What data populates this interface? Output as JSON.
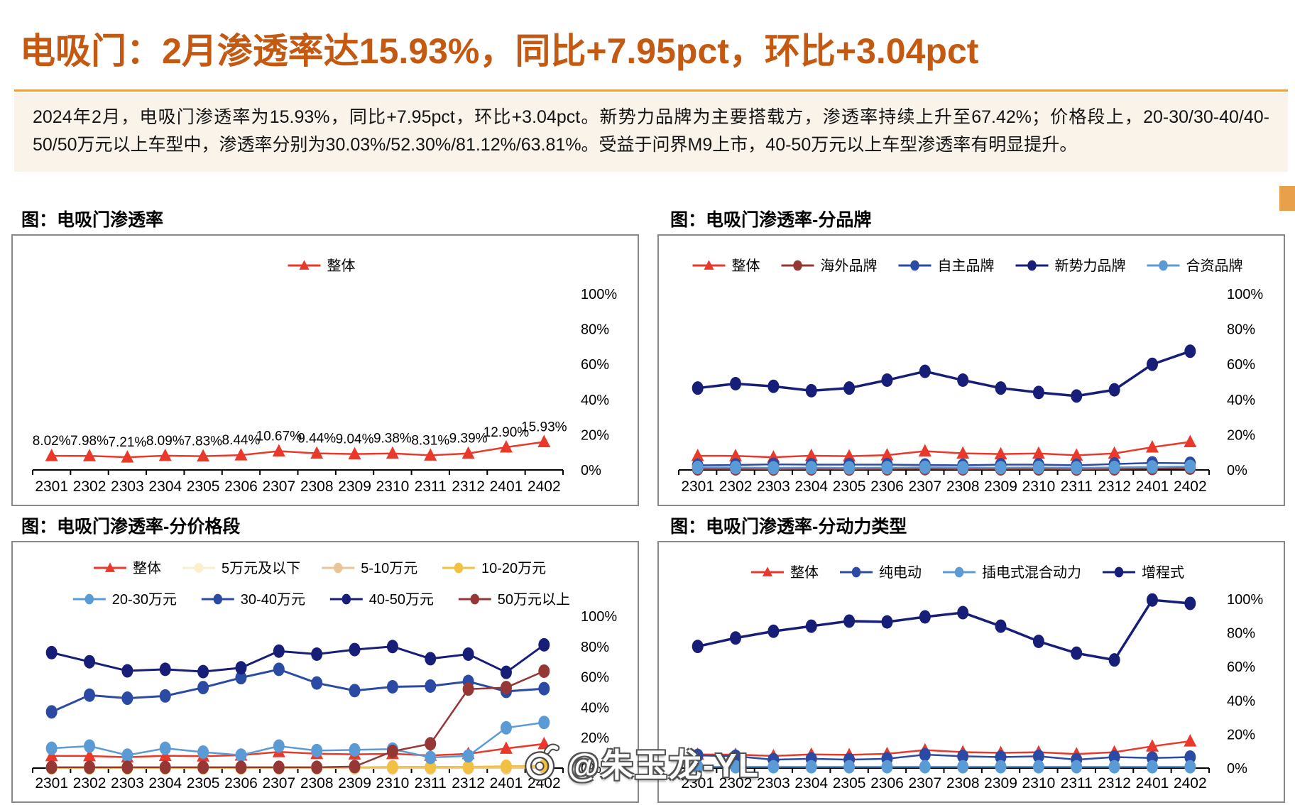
{
  "page": {
    "title": "电吸门：2月渗透率达15.93%，同比+7.95pct，环比+3.04pct",
    "summary": "2024年2月，电吸门渗透率为15.93%，同比+7.95pct，环比+3.04pct。新势力品牌为主要搭载方，渗透率持续上升至67.42%；价格段上，20-30/30-40/40-50/50万元以上车型中，渗透率分别为30.03%/52.30%/81.12%/63.81%。受益于问界M9上市，40-50万元以上车型渗透率有明显提升。",
    "watermark": "@朱玉龙-YL"
  },
  "colors": {
    "title_orange": "#C45911",
    "rule_orange": "#E9A04B",
    "summary_bg": "#FAF3EA",
    "overall_red": "#E8392B",
    "navy": "#171E77",
    "medium_blue": "#2B4AA3",
    "light_blue": "#5B9BD5",
    "maroon": "#953735",
    "gold": "#F2C142",
    "tan": "#E9C699",
    "pale_cream": "#FAF0CE"
  },
  "chart_data": [
    {
      "type": "line",
      "title": "图：电吸门渗透率",
      "categories": [
        "2301",
        "2302",
        "2303",
        "2304",
        "2305",
        "2306",
        "2307",
        "2308",
        "2309",
        "2310",
        "2311",
        "2312",
        "2401",
        "2402"
      ],
      "ylim": [
        0,
        100
      ],
      "grid": false,
      "legend_position": "top",
      "yticks": [
        {
          "label": "100%",
          "v": 100
        },
        {
          "label": "80%",
          "v": 80
        },
        {
          "label": "60%",
          "v": 60
        },
        {
          "label": "40%",
          "v": 40
        },
        {
          "label": "20%",
          "v": 20
        },
        {
          "label": "0%",
          "v": 0
        }
      ],
      "series": [
        {
          "name": "整体",
          "key": "overall",
          "color": "#E8392B",
          "marker": "triangle",
          "width": 2.5,
          "point_labels": true,
          "values": [
            8.02,
            7.98,
            7.21,
            8.09,
            7.83,
            8.44,
            10.67,
            9.44,
            9.04,
            9.38,
            8.31,
            9.39,
            12.9,
            15.93
          ]
        }
      ]
    },
    {
      "type": "line",
      "title": "图：电吸门渗透率-分品牌",
      "categories": [
        "2301",
        "2302",
        "2303",
        "2304",
        "2305",
        "2306",
        "2307",
        "2308",
        "2309",
        "2310",
        "2311",
        "2312",
        "2401",
        "2402"
      ],
      "ylim": [
        0,
        100
      ],
      "grid": false,
      "legend_position": "top",
      "yticks": [
        {
          "label": "100%",
          "v": 100
        },
        {
          "label": "80%",
          "v": 80
        },
        {
          "label": "60%",
          "v": 60
        },
        {
          "label": "40%",
          "v": 40
        },
        {
          "label": "20%",
          "v": 20
        },
        {
          "label": "0%",
          "v": 0
        }
      ],
      "series": [
        {
          "name": "整体",
          "key": "overall",
          "color": "#E8392B",
          "marker": "triangle",
          "width": 2.5,
          "values": [
            8.02,
            7.98,
            7.21,
            8.09,
            7.83,
            8.44,
            10.67,
            9.44,
            9.04,
            9.38,
            8.31,
            9.39,
            12.9,
            15.93
          ]
        },
        {
          "name": "海外品牌",
          "key": "overseas-brand",
          "color": "#953735",
          "marker": "circle",
          "width": 2.5,
          "values": [
            0.6,
            0.6,
            0.5,
            0.6,
            0.5,
            0.6,
            0.7,
            0.6,
            0.6,
            0.6,
            0.5,
            0.6,
            0.8,
            1.0
          ]
        },
        {
          "name": "自主品牌",
          "key": "domestic-brand",
          "color": "#2B4AA3",
          "marker": "circle",
          "width": 2.5,
          "values": [
            2.6,
            2.8,
            3.2,
            3.0,
            3.0,
            3.0,
            2.8,
            2.6,
            3.0,
            3.0,
            2.6,
            3.4,
            4.0,
            3.8
          ]
        },
        {
          "name": "新势力品牌",
          "key": "new-force-brand",
          "color": "#171E77",
          "marker": "circle",
          "width": 3.5,
          "values": [
            46.5,
            49.0,
            47.5,
            45.0,
            46.5,
            51.0,
            56.0,
            51.0,
            46.5,
            44.0,
            42.0,
            45.5,
            60.0,
            67.42
          ]
        },
        {
          "name": "合资品牌",
          "key": "jv-brand",
          "color": "#5B9BD5",
          "marker": "circle",
          "width": 2.5,
          "values": [
            1.4,
            1.4,
            1.2,
            1.3,
            1.2,
            1.3,
            1.5,
            1.3,
            1.3,
            1.4,
            1.2,
            1.4,
            1.7,
            2.0
          ]
        }
      ]
    },
    {
      "type": "line",
      "title": "图：电吸门渗透率-分价格段",
      "categories": [
        "2301",
        "2302",
        "2303",
        "2304",
        "2305",
        "2306",
        "2307",
        "2308",
        "2309",
        "2310",
        "2311",
        "2312",
        "2401",
        "2402"
      ],
      "ylim": [
        0,
        100
      ],
      "grid": false,
      "legend_position": "top-two-rows",
      "yticks": [
        {
          "label": "100%",
          "v": 100
        },
        {
          "label": "80%",
          "v": 80
        },
        {
          "label": "60%",
          "v": 60
        },
        {
          "label": "40%",
          "v": 40
        },
        {
          "label": "20%",
          "v": 20
        },
        {
          "label": "0%",
          "v": 0
        }
      ],
      "series": [
        {
          "name": "整体",
          "key": "overall",
          "color": "#E8392B",
          "marker": "triangle",
          "width": 2.5,
          "values": [
            8.02,
            7.98,
            7.21,
            8.09,
            7.83,
            8.44,
            10.67,
            9.44,
            9.04,
            9.38,
            8.31,
            9.39,
            12.9,
            15.93
          ]
        },
        {
          "name": "5万元及以下",
          "key": "below-50k",
          "color": "#FAF0CE",
          "marker": "circle",
          "width": 2.5,
          "values": [
            0.1,
            0.1,
            0.1,
            0.1,
            0.1,
            0.1,
            0.1,
            0.1,
            0.1,
            0.1,
            0.1,
            0.1,
            0.1,
            0.1
          ]
        },
        {
          "name": "5-10万元",
          "key": "50k-100k",
          "color": "#E9C699",
          "marker": "circle",
          "width": 2.5,
          "values": [
            0.2,
            0.2,
            0.2,
            0.2,
            0.2,
            0.2,
            0.2,
            0.2,
            0.2,
            0.2,
            0.2,
            0.2,
            0.2,
            0.2
          ]
        },
        {
          "name": "10-20万元",
          "key": "100k-200k",
          "color": "#F2C142",
          "marker": "circle",
          "width": 2.5,
          "values": [
            0.3,
            0.3,
            0.3,
            0.3,
            0.3,
            0.3,
            0.4,
            0.4,
            0.5,
            0.8,
            0.8,
            0.8,
            1.2,
            1.5
          ]
        },
        {
          "name": "20-30万元",
          "key": "200k-300k",
          "color": "#5B9BD5",
          "marker": "circle",
          "width": 2.5,
          "values": [
            13.0,
            14.5,
            8.5,
            13.0,
            10.5,
            8.5,
            14.5,
            11.5,
            12.0,
            12.5,
            7.0,
            8.0,
            26.5,
            30.03
          ]
        },
        {
          "name": "30-40万元",
          "key": "300k-400k",
          "color": "#2B4AA3",
          "marker": "circle",
          "width": 3,
          "values": [
            37.0,
            48.0,
            46.0,
            47.5,
            53.0,
            59.5,
            65.0,
            56.0,
            51.0,
            53.5,
            54.0,
            57.0,
            50.5,
            52.3
          ]
        },
        {
          "name": "40-50万元",
          "key": "400k-500k",
          "color": "#171E77",
          "marker": "circle",
          "width": 3,
          "values": [
            76.0,
            70.0,
            64.0,
            65.0,
            63.5,
            66.0,
            77.0,
            75.0,
            78.0,
            80.0,
            72.0,
            75.0,
            63.0,
            81.12
          ]
        },
        {
          "name": "50万元以上",
          "key": "above-500k",
          "color": "#953735",
          "marker": "circle",
          "width": 2.5,
          "values": [
            0.5,
            0.5,
            0.5,
            0.5,
            0.5,
            0.5,
            0.5,
            0.5,
            1.0,
            11.0,
            16.0,
            52.0,
            53.0,
            63.81
          ]
        }
      ]
    },
    {
      "type": "line",
      "title": "图：电吸门渗透率-分动力类型",
      "categories": [
        "2301",
        "2302",
        "2303",
        "2304",
        "2305",
        "2306",
        "2307",
        "2308",
        "2309",
        "2310",
        "2311",
        "2312",
        "2401",
        "2402"
      ],
      "ylim": [
        0,
        100
      ],
      "grid": false,
      "legend_position": "top",
      "yticks": [
        {
          "label": "100%",
          "v": 100
        },
        {
          "label": "80%",
          "v": 80
        },
        {
          "label": "60%",
          "v": 60
        },
        {
          "label": "40%",
          "v": 40
        },
        {
          "label": "20%",
          "v": 20
        },
        {
          "label": "0%",
          "v": 0
        }
      ],
      "series": [
        {
          "name": "整体",
          "key": "overall",
          "color": "#E8392B",
          "marker": "triangle",
          "width": 2.5,
          "values": [
            8.02,
            7.98,
            7.21,
            8.09,
            7.83,
            8.44,
            10.67,
            9.44,
            9.04,
            9.38,
            8.31,
            9.39,
            12.9,
            15.93
          ]
        },
        {
          "name": "纯电动",
          "key": "bev",
          "color": "#2B4AA3",
          "marker": "circle",
          "width": 2.5,
          "values": [
            7.5,
            7.0,
            5.0,
            5.5,
            5.0,
            5.5,
            8.0,
            7.0,
            6.5,
            7.0,
            5.0,
            6.5,
            6.0,
            6.5
          ]
        },
        {
          "name": "插电式混合动力",
          "key": "phev",
          "color": "#5B9BD5",
          "marker": "circle",
          "width": 2.5,
          "values": [
            0.8,
            0.8,
            0.8,
            0.8,
            0.8,
            0.8,
            0.8,
            0.8,
            0.8,
            0.8,
            0.8,
            0.8,
            0.8,
            0.8
          ]
        },
        {
          "name": "增程式",
          "key": "erev",
          "color": "#171E77",
          "marker": "circle",
          "width": 3.5,
          "values": [
            72.0,
            77.0,
            81.0,
            84.0,
            87.0,
            86.5,
            89.5,
            92.0,
            84.0,
            75.0,
            68.0,
            64.0,
            99.5,
            97.5
          ]
        }
      ]
    }
  ]
}
